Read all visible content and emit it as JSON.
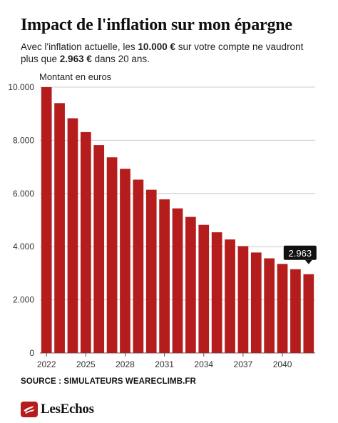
{
  "title": "Impact de l'inflation sur mon épargne",
  "subtitle": {
    "part1": "Avec l'inflation actuelle, les ",
    "amount_start": "10.000 €",
    "part2": " sur votre compte ne vaudront plus que ",
    "amount_end": "2.963 €",
    "part3": " dans 20 ans."
  },
  "source": "SOURCE : SIMULATEURS WEARECLIMB.FR",
  "brand": "LesEchos",
  "colors": {
    "bar": "#b51c1c",
    "grid": "#cccccc",
    "callout": "#111111"
  },
  "chart_data": {
    "type": "bar",
    "unit_label": "Montant en euros",
    "categories": [
      2022,
      2023,
      2024,
      2025,
      2026,
      2027,
      2028,
      2029,
      2030,
      2031,
      2032,
      2033,
      2034,
      2035,
      2036,
      2037,
      2038,
      2039,
      2040,
      2041,
      2042
    ],
    "values": [
      10000,
      9400,
      8830,
      8310,
      7820,
      7360,
      6930,
      6520,
      6140,
      5780,
      5440,
      5120,
      4820,
      4540,
      4270,
      4020,
      3780,
      3560,
      3350,
      3150,
      2963
    ],
    "ylim": [
      0,
      10000
    ],
    "yticks": [
      0,
      2000,
      4000,
      6000,
      8000,
      10000
    ],
    "ytick_labels": [
      "0",
      "2.000",
      "4.000",
      "6.000",
      "8.000",
      "10.000"
    ],
    "xticks": [
      2022,
      2025,
      2028,
      2031,
      2034,
      2037,
      2040
    ],
    "callout": {
      "year": 2042,
      "label": "2.963"
    },
    "grid": true
  }
}
